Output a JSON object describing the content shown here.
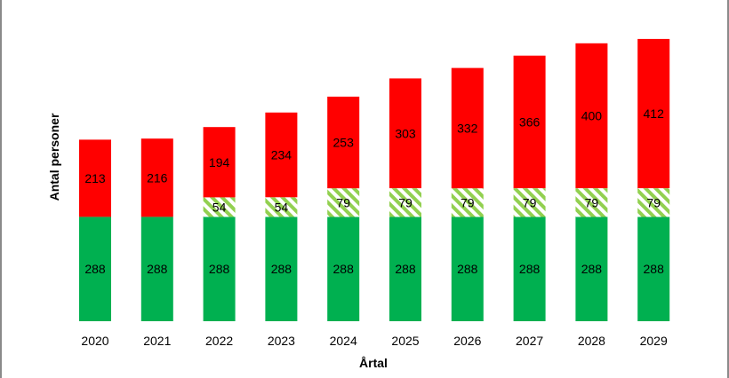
{
  "chart_data": {
    "type": "bar",
    "stacked": true,
    "categories": [
      "2020",
      "2021",
      "2022",
      "2023",
      "2024",
      "2025",
      "2026",
      "2027",
      "2028",
      "2029"
    ],
    "series": [
      {
        "values": [
          288,
          288,
          288,
          288,
          288,
          288,
          288,
          288,
          288,
          288
        ],
        "color": "#00b050",
        "pattern": "solid"
      },
      {
        "values": [
          0,
          0,
          54,
          54,
          79,
          79,
          79,
          79,
          79,
          79
        ],
        "color": "#92d050",
        "pattern": "diagonal-stripes"
      },
      {
        "values": [
          213,
          216,
          194,
          234,
          253,
          303,
          332,
          366,
          400,
          412
        ],
        "color": "#ff0000",
        "pattern": "solid"
      }
    ],
    "xlabel": "Årtal",
    "ylabel": "Antal personer",
    "ylim": [
      0,
      800
    ],
    "grid": false,
    "legend": "none"
  }
}
